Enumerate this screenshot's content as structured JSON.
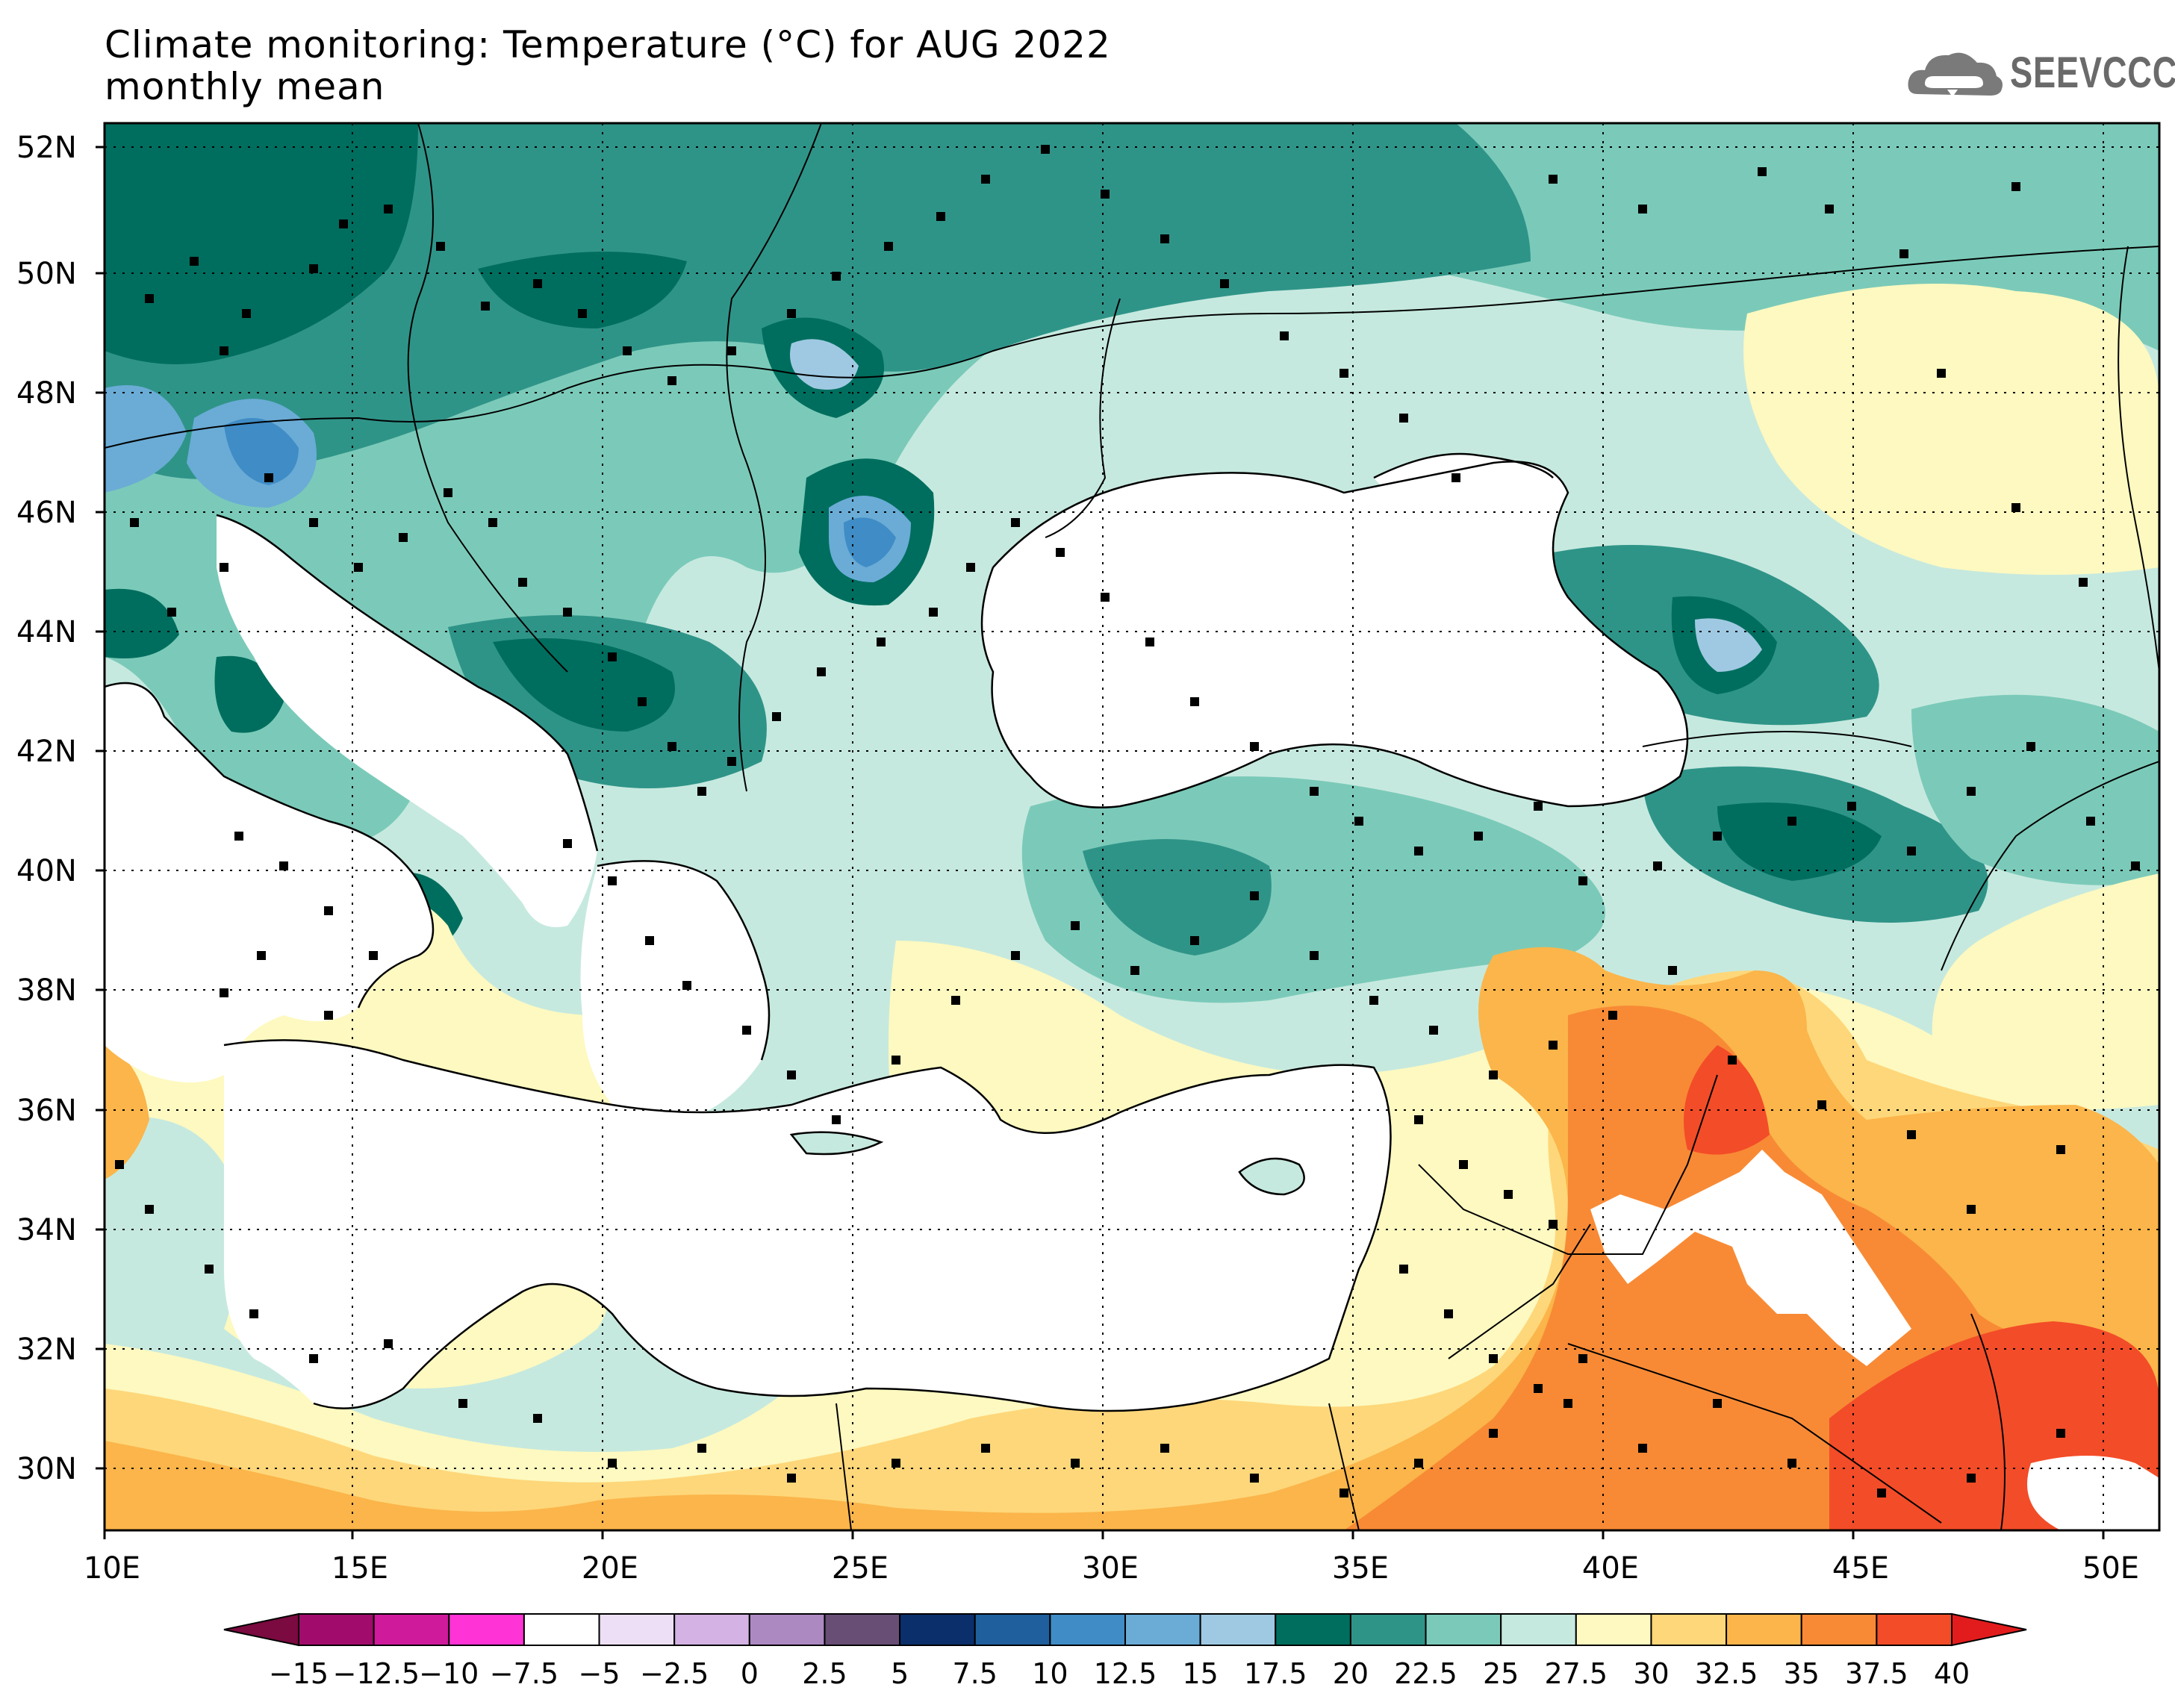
{
  "title": {
    "line1": "Climate monitoring: Temperature (°C) for AUG 2022",
    "line2": "monthly mean"
  },
  "logo": {
    "text": "SEEVCCC",
    "icon": "cloud-icon"
  },
  "map": {
    "region_lon": [
      10,
      51
    ],
    "region_lat": [
      29,
      52.5
    ],
    "lat_labels": [
      "52N",
      "50N",
      "48N",
      "46N",
      "44N",
      "42N",
      "40N",
      "38N",
      "36N",
      "34N",
      "32N",
      "30N"
    ],
    "lon_labels": [
      "10E",
      "15E",
      "20E",
      "25E",
      "30E",
      "35E",
      "40E",
      "45E",
      "50E"
    ],
    "gridlines": "dotted",
    "stations_marker": "black-square",
    "sea_color": "#ffffff"
  },
  "colorbar": {
    "labels": [
      "−15",
      "−12.5",
      "−10",
      "−7.5",
      "−5",
      "−2.5",
      "0",
      "2.5",
      "5",
      "7.5",
      "10",
      "12.5",
      "15",
      "17.5",
      "20",
      "22.5",
      "25",
      "27.5",
      "30",
      "32.5",
      "35",
      "37.5",
      "40"
    ],
    "colors": [
      "#7a0a3f",
      "#a10b6b",
      "#cf1a9b",
      "#ff33d6",
      "#ffffff",
      "#eddff5",
      "#d4b3e4",
      "#ad89c2",
      "#684e75",
      "#0a2f6b",
      "#1f5f9e",
      "#3f8cc6",
      "#6aacd6",
      "#9fc9e2",
      "#006e5e",
      "#2f9488",
      "#7bcab9",
      "#c6e9df",
      "#fdf9c0",
      "#fed77a",
      "#fbb54a",
      "#f88a35",
      "#f34c28",
      "#e21c1c"
    ]
  }
}
